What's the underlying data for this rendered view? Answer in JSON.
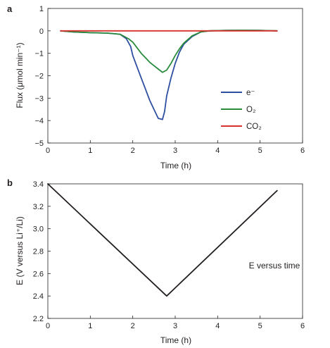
{
  "chart_data": [
    {
      "panel_label": "a",
      "type": "line",
      "xlabel": "Time (h)",
      "ylabel": "Flux (μmol min⁻¹)",
      "xlim": [
        0,
        6
      ],
      "ylim": [
        -5,
        1
      ],
      "xticks": [
        "0",
        "1",
        "2",
        "3",
        "4",
        "5",
        "6"
      ],
      "yticks": [
        "−5",
        "−4",
        "−3",
        "−2",
        "−1",
        "0",
        "1"
      ],
      "grid": false,
      "legend_position": "bottom-right",
      "series": [
        {
          "name": "e⁻",
          "color": "#2e4fa0",
          "x": [
            0.3,
            0.6,
            1.0,
            1.4,
            1.7,
            1.85,
            1.95,
            2.0,
            2.1,
            2.2,
            2.3,
            2.4,
            2.5,
            2.6,
            2.7,
            2.75,
            2.8,
            2.9,
            3.0,
            3.1,
            3.2,
            3.4,
            3.6,
            3.8,
            4.2,
            4.6,
            5.0,
            5.4
          ],
          "y": [
            0.0,
            -0.05,
            -0.08,
            -0.1,
            -0.15,
            -0.35,
            -0.7,
            -1.1,
            -1.6,
            -2.1,
            -2.6,
            -3.1,
            -3.5,
            -3.9,
            -3.95,
            -3.6,
            -2.9,
            -2.1,
            -1.45,
            -0.95,
            -0.6,
            -0.25,
            -0.05,
            0.0,
            0.02,
            0.03,
            0.02,
            0.0
          ]
        },
        {
          "name": "O₂",
          "color": "#2a8b3d",
          "x": [
            0.3,
            0.6,
            1.0,
            1.4,
            1.7,
            1.9,
            2.0,
            2.1,
            2.2,
            2.3,
            2.4,
            2.5,
            2.6,
            2.7,
            2.8,
            2.9,
            3.0,
            3.1,
            3.2,
            3.4,
            3.6,
            3.8,
            4.2,
            4.6,
            5.0,
            5.4
          ],
          "y": [
            0.0,
            -0.05,
            -0.08,
            -0.1,
            -0.15,
            -0.35,
            -0.5,
            -0.75,
            -1.0,
            -1.2,
            -1.4,
            -1.55,
            -1.7,
            -1.85,
            -1.75,
            -1.45,
            -1.1,
            -0.8,
            -0.55,
            -0.22,
            -0.05,
            0.0,
            0.02,
            0.03,
            0.02,
            0.0
          ]
        },
        {
          "name": "CO₂",
          "color": "#d7322d",
          "x": [
            0.3,
            5.4
          ],
          "y": [
            0.0,
            0.0
          ]
        }
      ]
    },
    {
      "panel_label": "b",
      "type": "line",
      "xlabel": "Time (h)",
      "ylabel": "E (V versus Li⁺/Li)",
      "xlim": [
        0,
        6
      ],
      "ylim": [
        2.2,
        3.4
      ],
      "xticks": [
        "0",
        "1",
        "2",
        "3",
        "4",
        "5",
        "6"
      ],
      "yticks": [
        "2.2",
        "2.4",
        "2.6",
        "2.8",
        "3.0",
        "3.2",
        "3.4"
      ],
      "grid": false,
      "annotation": "E versus time",
      "series": [
        {
          "color": "#231f20",
          "x": [
            0.0,
            2.8,
            5.4
          ],
          "y": [
            3.4,
            2.4,
            3.34
          ]
        }
      ]
    }
  ]
}
